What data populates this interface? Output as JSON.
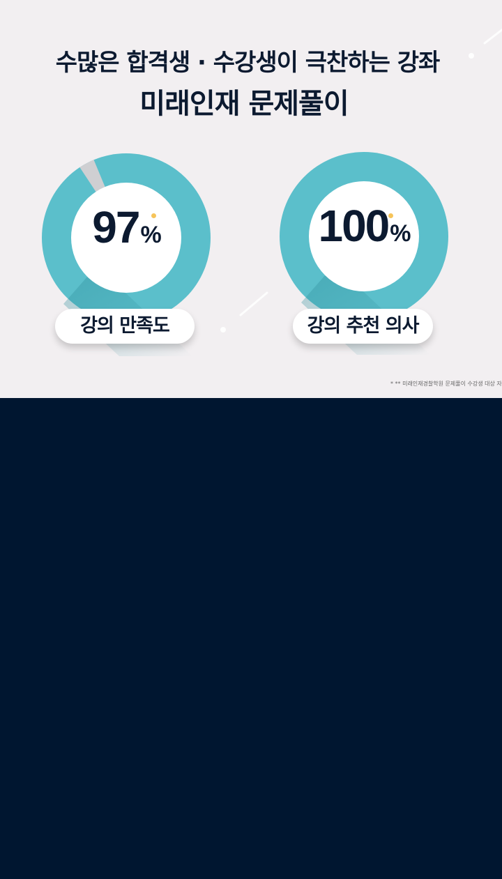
{
  "headline": {
    "line1": "수많은 합격생 · 수강생이 극찬하는 강좌",
    "line2": "미래인재 문제풀이"
  },
  "stats": [
    {
      "value": "97",
      "unit": "%",
      "label": "강의 만족도",
      "fraction": 0.97
    },
    {
      "value": "100",
      "unit": "%",
      "label": "강의 추천 의사",
      "fraction": 1.0
    }
  ],
  "footnote": "* ** 미래인재경찰학원 문제풀이 수강생 대상 자",
  "colors": {
    "background": "#f2eff1",
    "ring": "#5bbfcb",
    "ring_gap": "#cfcfd2",
    "text": "#0c1a30",
    "accent_dot": "#f6c45a",
    "lower_panel": "#001630"
  }
}
